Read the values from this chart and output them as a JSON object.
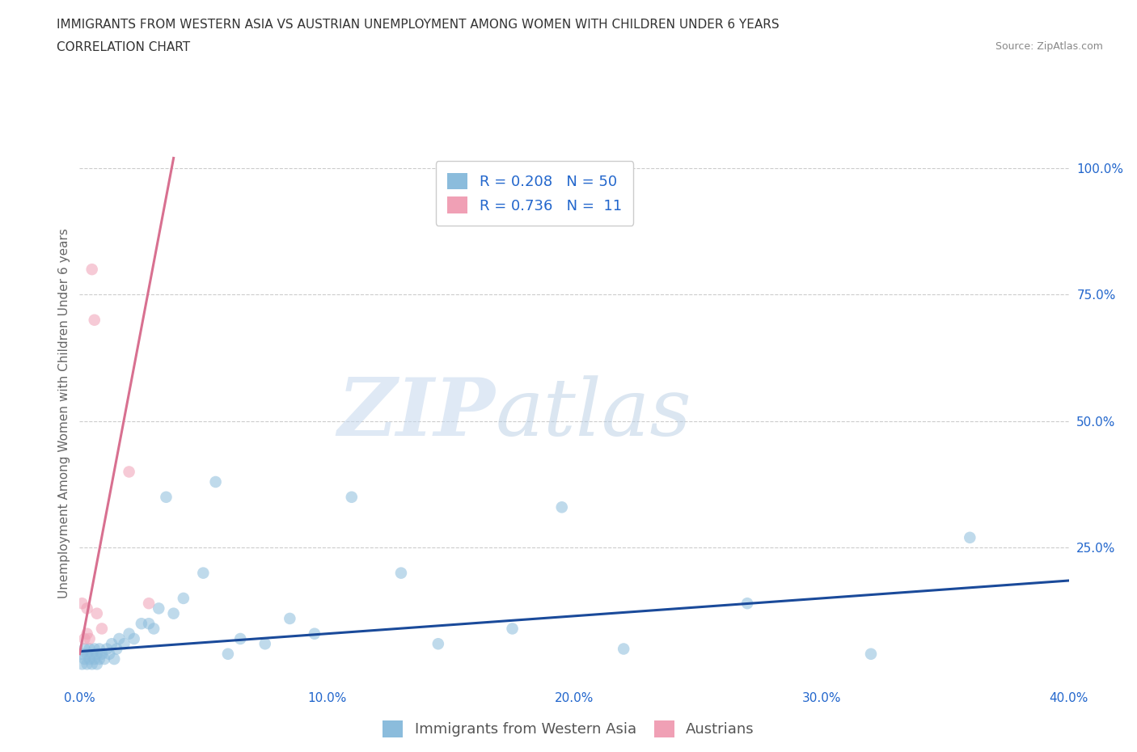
{
  "title_line1": "IMMIGRANTS FROM WESTERN ASIA VS AUSTRIAN UNEMPLOYMENT AMONG WOMEN WITH CHILDREN UNDER 6 YEARS",
  "title_line2": "CORRELATION CHART",
  "source_text": "Source: ZipAtlas.com",
  "ylabel": "Unemployment Among Women with Children Under 6 years",
  "xlim": [
    0.0,
    0.4
  ],
  "ylim": [
    -0.02,
    1.05
  ],
  "xticks": [
    0.0,
    0.1,
    0.2,
    0.3,
    0.4
  ],
  "xticklabels": [
    "0.0%",
    "10.0%",
    "20.0%",
    "30.0%",
    "40.0%"
  ],
  "yticks_right": [
    0.25,
    0.5,
    0.75,
    1.0
  ],
  "yticklabels_right": [
    "25.0%",
    "50.0%",
    "75.0%",
    "100.0%"
  ],
  "watermark_zip": "ZIP",
  "watermark_atlas": "atlas",
  "legend_entries": [
    {
      "label": "Immigrants from Western Asia",
      "R": "0.208",
      "N": "50",
      "color": "#a8c4e0"
    },
    {
      "label": "Austrians",
      "R": "0.736",
      "N": "11",
      "color": "#f4a8b8"
    }
  ],
  "blue_scatter_x": [
    0.001,
    0.001,
    0.002,
    0.002,
    0.003,
    0.003,
    0.004,
    0.004,
    0.005,
    0.005,
    0.006,
    0.006,
    0.007,
    0.007,
    0.008,
    0.008,
    0.009,
    0.01,
    0.011,
    0.012,
    0.013,
    0.014,
    0.015,
    0.016,
    0.018,
    0.02,
    0.022,
    0.025,
    0.028,
    0.03,
    0.032,
    0.035,
    0.038,
    0.042,
    0.05,
    0.055,
    0.06,
    0.065,
    0.075,
    0.085,
    0.095,
    0.11,
    0.13,
    0.145,
    0.175,
    0.195,
    0.22,
    0.27,
    0.32,
    0.36
  ],
  "blue_scatter_y": [
    0.04,
    0.02,
    0.05,
    0.03,
    0.04,
    0.02,
    0.05,
    0.03,
    0.04,
    0.02,
    0.05,
    0.03,
    0.04,
    0.02,
    0.05,
    0.03,
    0.04,
    0.03,
    0.05,
    0.04,
    0.06,
    0.03,
    0.05,
    0.07,
    0.06,
    0.08,
    0.07,
    0.1,
    0.1,
    0.09,
    0.13,
    0.35,
    0.12,
    0.15,
    0.2,
    0.38,
    0.04,
    0.07,
    0.06,
    0.11,
    0.08,
    0.35,
    0.2,
    0.06,
    0.09,
    0.33,
    0.05,
    0.14,
    0.04,
    0.27
  ],
  "pink_scatter_x": [
    0.001,
    0.002,
    0.003,
    0.003,
    0.004,
    0.005,
    0.006,
    0.007,
    0.009,
    0.02,
    0.028
  ],
  "pink_scatter_y": [
    0.14,
    0.07,
    0.08,
    0.13,
    0.07,
    0.8,
    0.7,
    0.12,
    0.09,
    0.4,
    0.14
  ],
  "blue_line_x": [
    0.0,
    0.4
  ],
  "blue_line_y": [
    0.045,
    0.185
  ],
  "pink_line_x": [
    0.0,
    0.038
  ],
  "pink_line_y": [
    0.04,
    1.02
  ],
  "title_fontsize": 11,
  "subtitle_fontsize": 11,
  "axis_label_fontsize": 11,
  "tick_fontsize": 11,
  "legend_fontsize": 13,
  "scatter_size": 110,
  "scatter_alpha": 0.55,
  "line_width": 2.2,
  "grid_color": "#cccccc",
  "grid_style": "--",
  "background_color": "#ffffff",
  "blue_color": "#8bbcdc",
  "blue_line_color": "#1a4a9a",
  "pink_color": "#f0a0b5",
  "pink_line_color": "#d87090"
}
